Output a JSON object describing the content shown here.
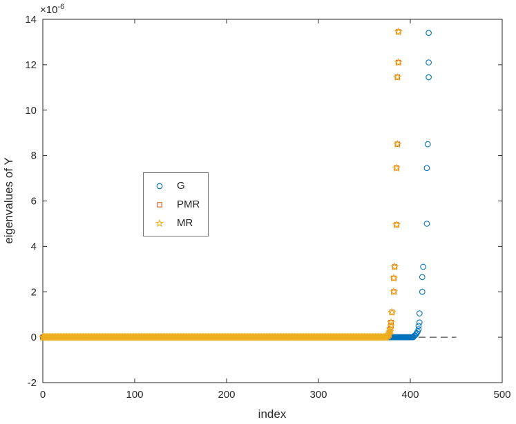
{
  "figure": {
    "background": "#ffffff",
    "axes_color": "#262626",
    "multiplier_base": "×10",
    "multiplier_exponent": "-6"
  },
  "chart_data": {
    "type": "scatter",
    "title": "",
    "xlabel": "index",
    "ylabel": "eigenvalues of Y",
    "xlim": [
      0,
      500
    ],
    "ylim_scaled": [
      -2,
      14
    ],
    "y_scale_factor": 1e-06,
    "x_ticks": [
      0,
      100,
      200,
      300,
      400,
      500
    ],
    "y_ticks_scaled": [
      -2,
      0,
      2,
      4,
      6,
      8,
      10,
      12,
      14
    ],
    "grid": false,
    "legend": {
      "entries": [
        "G",
        "PMR",
        "MR"
      ],
      "position": "inside-upper-left"
    },
    "zero_line": {
      "y": 0,
      "x_start": 0,
      "x_end": 450,
      "style": "dashed",
      "color": "#4d4d4d"
    },
    "series": [
      {
        "name": "G",
        "marker": "circle",
        "color": "#0072BD",
        "flat": {
          "x_start": 0,
          "x_end": 403,
          "y": 0
        },
        "tail": [
          [
            404,
            0.05
          ],
          [
            405,
            0.08
          ],
          [
            406,
            0.12
          ],
          [
            407,
            0.18
          ],
          [
            408,
            0.25
          ],
          [
            409,
            0.35
          ],
          [
            409,
            0.5
          ],
          [
            410,
            0.65
          ],
          [
            410,
            1.05
          ],
          [
            413,
            2.0
          ],
          [
            413,
            2.65
          ],
          [
            414,
            3.1
          ],
          [
            418,
            5.0
          ],
          [
            418,
            7.45
          ],
          [
            419,
            8.5
          ],
          [
            420,
            11.45
          ],
          [
            420,
            12.1
          ],
          [
            420,
            13.4
          ]
        ]
      },
      {
        "name": "PMR",
        "marker": "square",
        "color": "#D95319",
        "flat": {
          "x_start": 0,
          "x_end": 374,
          "y": 0
        },
        "tail": [
          [
            375,
            0.05
          ],
          [
            376,
            0.08
          ],
          [
            377,
            0.12
          ],
          [
            377,
            0.18
          ],
          [
            378,
            0.25
          ],
          [
            378,
            0.35
          ],
          [
            379,
            0.5
          ],
          [
            379,
            0.65
          ],
          [
            380,
            1.1
          ],
          [
            382,
            2.0
          ],
          [
            382,
            2.6
          ],
          [
            383,
            3.1
          ],
          [
            385,
            4.95
          ],
          [
            385,
            7.45
          ],
          [
            386,
            8.5
          ],
          [
            386,
            11.45
          ],
          [
            387,
            12.1
          ],
          [
            387,
            13.45
          ]
        ]
      },
      {
        "name": "MR",
        "marker": "pentagram",
        "color": "#EDB120",
        "flat": {
          "x_start": 0,
          "x_end": 374,
          "y": 0
        },
        "tail": [
          [
            375,
            0.05
          ],
          [
            376,
            0.08
          ],
          [
            377,
            0.12
          ],
          [
            377,
            0.18
          ],
          [
            378,
            0.25
          ],
          [
            378,
            0.35
          ],
          [
            379,
            0.5
          ],
          [
            379,
            0.65
          ],
          [
            380,
            1.1
          ],
          [
            382,
            2.0
          ],
          [
            382,
            2.6
          ],
          [
            383,
            3.1
          ],
          [
            385,
            4.95
          ],
          [
            385,
            7.45
          ],
          [
            386,
            8.5
          ],
          [
            386,
            11.45
          ],
          [
            387,
            12.1
          ],
          [
            387,
            13.45
          ]
        ]
      }
    ]
  }
}
